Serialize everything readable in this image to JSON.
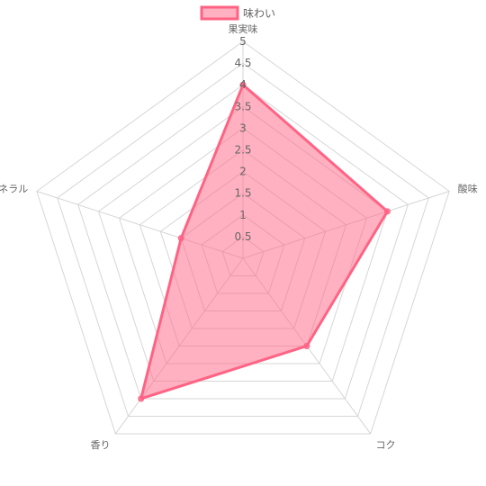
{
  "chart_data": {
    "type": "radar",
    "categories": [
      "果実味",
      "酸味",
      "コク",
      "香り",
      "ミネラル"
    ],
    "series": [
      {
        "name": "味わい",
        "values": [
          4,
          3.5,
          2.5,
          4,
          1.5
        ],
        "fill": "#ff6384",
        "fill_opacity": 0.5,
        "stroke": "#ff6384"
      }
    ],
    "r_ticks": [
      "0.5",
      "1",
      "1.5",
      "2",
      "2.5",
      "3",
      "3.5",
      "4",
      "4.5",
      "5"
    ],
    "r_max": 5,
    "r_step": 0.5,
    "grid": true,
    "legend_position": "top"
  }
}
